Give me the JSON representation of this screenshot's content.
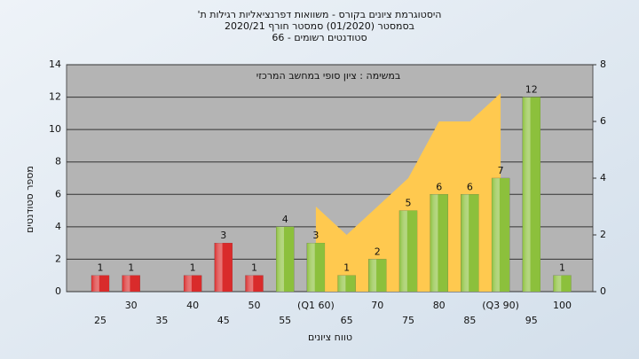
{
  "chart_data": {
    "type": "bar",
    "title": "היסטוגרמת ציונים בקורס - משוואות דפרנציאליות רגילות ת'",
    "subtitle": "בסמסטר (01/2020) סמסטר חורף 2020/21",
    "subtitle2": "סטודנטים רשומים - 66",
    "annotation": "במשימה : ציון סופי במחשב המרכזי",
    "x_label": "טווח ציונים",
    "y_label": "מספר סטודנטים",
    "categories": [
      "25",
      "30",
      "35",
      "40",
      "45",
      "50",
      "55",
      "(Q1 60)",
      "65",
      "70",
      "75",
      "80",
      "85",
      "(Q3 90)",
      "95",
      "100"
    ],
    "values": [
      1,
      1,
      null,
      1,
      3,
      1,
      4,
      3,
      1,
      2,
      5,
      6,
      6,
      7,
      12,
      1
    ],
    "colors": [
      "#d92b2b",
      "#d92b2b",
      "#d92b2b",
      "#d92b2b",
      "#d92b2b",
      "#d92b2b",
      "#8cc03c",
      "#8cc03c",
      "#8cc03c",
      "#8cc03c",
      "#8cc03c",
      "#8cc03c",
      "#8cc03c",
      "#8cc03c",
      "#8cc03c",
      "#8cc03c"
    ],
    "area": {
      "axis": "y2",
      "color": "#ffc94f",
      "values": [
        null,
        null,
        null,
        null,
        null,
        null,
        null,
        3,
        2,
        3,
        4,
        6,
        6,
        7,
        null,
        null
      ]
    },
    "ylim": [
      0,
      14
    ],
    "yticks": [
      0,
      2,
      4,
      6,
      8,
      10,
      12,
      14
    ],
    "y2lim": [
      0,
      8
    ],
    "y2ticks": [
      0,
      2,
      4,
      6,
      8
    ],
    "grid": true
  }
}
